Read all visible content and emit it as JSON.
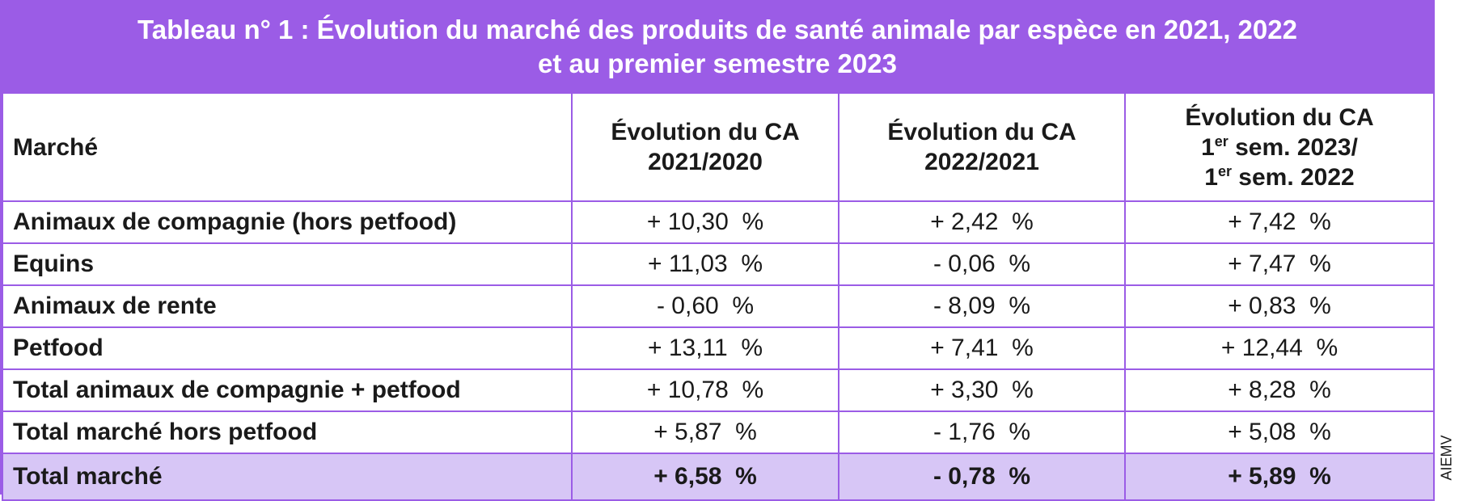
{
  "title": {
    "line1": "Tableau n° 1 : Évolution du marché des produits de santé animale par espèce en 2021, 2022",
    "line2": "et au premier semestre 2023"
  },
  "header": {
    "col0": "Marché",
    "col1_line1": "Évolution du CA",
    "col1_line2": "2021/2020",
    "col2_line1": "Évolution du CA",
    "col2_line2": "2022/2021",
    "col3_line1": "Évolution du CA",
    "col3_line2_pre": "1",
    "col3_line2_sup": "er",
    "col3_line2_post": " sem. 2023/",
    "col3_line3_pre": "1",
    "col3_line3_sup": "er",
    "col3_line3_post": " sem. 2022"
  },
  "rows": [
    {
      "label": "Animaux de compagnie (hors petfood)",
      "v1": "+ 10,30  %",
      "v2": "+ 2,42  %",
      "v3": "+ 7,42  %"
    },
    {
      "label": "Equins",
      "v1": "+ 11,03  %",
      "v2": "- 0,06  %",
      "v3": "+ 7,47  %"
    },
    {
      "label": "Animaux de rente",
      "v1": "- 0,60  %",
      "v2": "- 8,09  %",
      "v3": "+ 0,83  %"
    },
    {
      "label": "Petfood",
      "v1": "+ 13,11  %",
      "v2": "+ 7,41  %",
      "v3": "+ 12,44  %"
    },
    {
      "label": "Total animaux de compagnie + petfood",
      "v1": "+ 10,78  %",
      "v2": "+ 3,30  %",
      "v3": "+ 8,28  %"
    },
    {
      "label": "Total marché hors petfood",
      "v1": "+ 5,87  %",
      "v2": "- 1,76  %",
      "v3": "+ 5,08  %"
    }
  ],
  "total": {
    "label": "Total marché",
    "v1": "+ 6,58  %",
    "v2": "- 0,78  %",
    "v3": "+ 5,89  %"
  },
  "source": "AIEMV",
  "colors": {
    "accent": "#9b5ce6",
    "total_bg": "#d7c6f6"
  }
}
